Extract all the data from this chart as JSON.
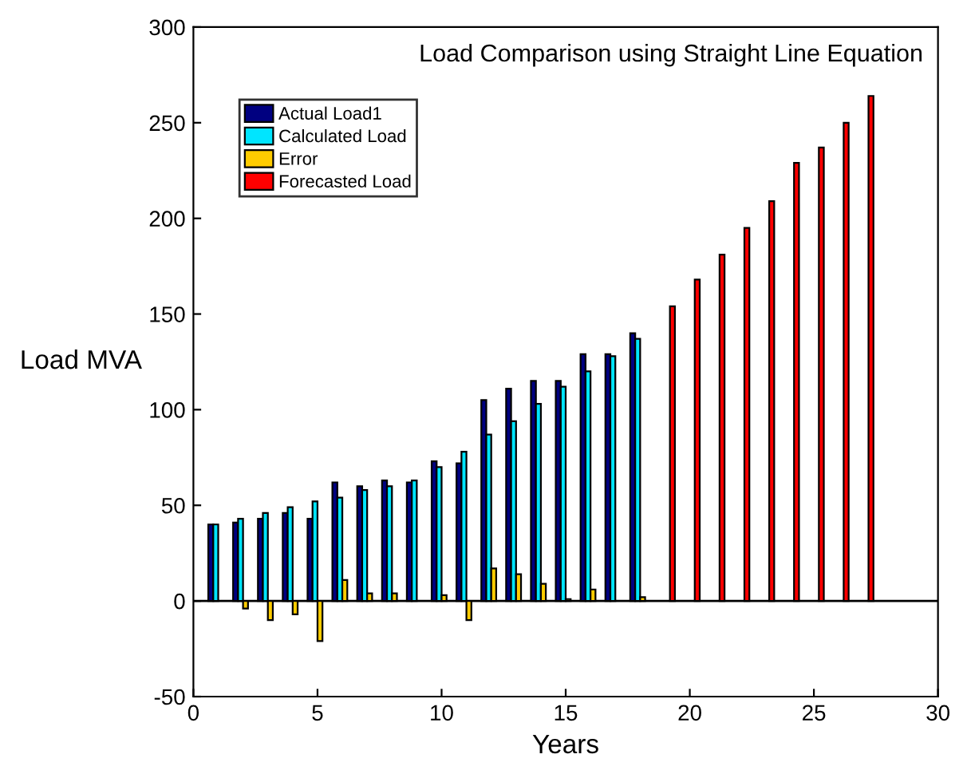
{
  "chart_data": {
    "type": "bar",
    "title": "Load Comparison using Straight Line Equation",
    "xlabel": "Years",
    "ylabel": "Load MVA",
    "xlim": [
      0,
      30
    ],
    "xticks": [
      0,
      5,
      10,
      15,
      20,
      25,
      30
    ],
    "ylim": [
      -50,
      300
    ],
    "yticks": [
      -50,
      0,
      50,
      100,
      150,
      200,
      250,
      300
    ],
    "grid": false,
    "legend": "top left",
    "ref_lines": [
      {
        "axis": "y",
        "value": 0,
        "color": "#000000"
      }
    ],
    "series": [
      {
        "name": "Actual Load1",
        "color": "#000080",
        "x": [
          1,
          2,
          3,
          4,
          5,
          6,
          7,
          8,
          9,
          10,
          11,
          12,
          13,
          14,
          15,
          16,
          17,
          18
        ],
        "values": [
          40,
          41,
          43,
          46,
          43,
          62,
          60,
          63,
          62,
          73,
          72,
          105,
          111,
          115,
          115,
          129,
          129,
          140
        ]
      },
      {
        "name": "Calculated Load",
        "color": "#00e5ff",
        "x": [
          1,
          2,
          3,
          4,
          5,
          6,
          7,
          8,
          9,
          10,
          11,
          12,
          13,
          14,
          15,
          16,
          17,
          18
        ],
        "values": [
          40,
          43,
          46,
          49,
          52,
          54,
          58,
          60,
          63,
          70,
          78,
          87,
          94,
          103,
          112,
          120,
          128,
          137
        ]
      },
      {
        "name": "Error",
        "color": "#ffcc00",
        "x": [
          2,
          3,
          4,
          5,
          6,
          7,
          8,
          10,
          11,
          12,
          13,
          14,
          15,
          16,
          18
        ],
        "values": [
          -4,
          -10,
          -7,
          -21,
          11,
          4,
          4,
          3,
          -10,
          17,
          14,
          9,
          1,
          6,
          2
        ]
      },
      {
        "name": "Forecasted Load",
        "color": "#ff0000",
        "x": [
          19,
          20,
          21,
          22,
          23,
          24,
          25,
          26,
          27
        ],
        "values": [
          154,
          168,
          181,
          195,
          209,
          229,
          237,
          250,
          264
        ]
      }
    ]
  }
}
